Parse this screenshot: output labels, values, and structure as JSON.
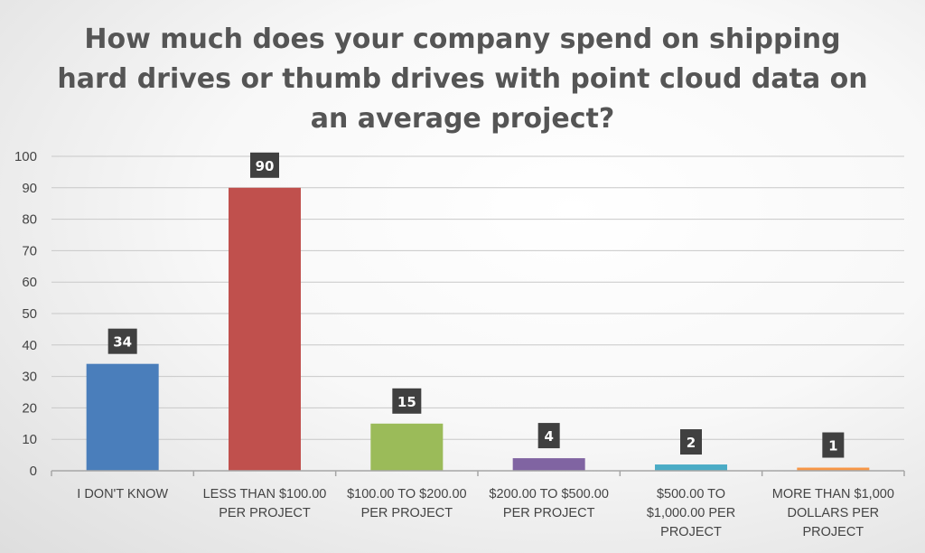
{
  "chart_data": {
    "type": "bar",
    "title_lines": [
      "How much does your company spend on shipping",
      "hard drives or thumb drives with point cloud data on",
      "an average project?"
    ],
    "xlabel": "",
    "ylabel": "",
    "ylim": [
      0,
      100
    ],
    "yticks": [
      0,
      10,
      20,
      30,
      40,
      50,
      60,
      70,
      80,
      90,
      100
    ],
    "grid": true,
    "legend": "none",
    "categories": [
      [
        "I DON'T KNOW"
      ],
      [
        "LESS THAN $100.00",
        "PER PROJECT"
      ],
      [
        "$100.00 TO $200.00",
        "PER PROJECT"
      ],
      [
        "$200.00 TO $500.00",
        "PER PROJECT"
      ],
      [
        "$500.00 TO",
        "$1,000.00 PER",
        "PROJECT"
      ],
      [
        "MORE THAN $1,000",
        "DOLLARS PER",
        "PROJECT"
      ]
    ],
    "values": [
      34,
      90,
      15,
      4,
      2,
      1
    ],
    "data_labels": [
      "34",
      "90",
      "15",
      "4",
      "2",
      "1"
    ],
    "colors": [
      "#4a7ebb",
      "#c0504d",
      "#9bbb59",
      "#8064a2",
      "#4bacc6",
      "#f79646"
    ],
    "gridline_color": "#c8c8c8",
    "axis_color": "#a6a6a6",
    "data_label_bg": "#404040"
  }
}
